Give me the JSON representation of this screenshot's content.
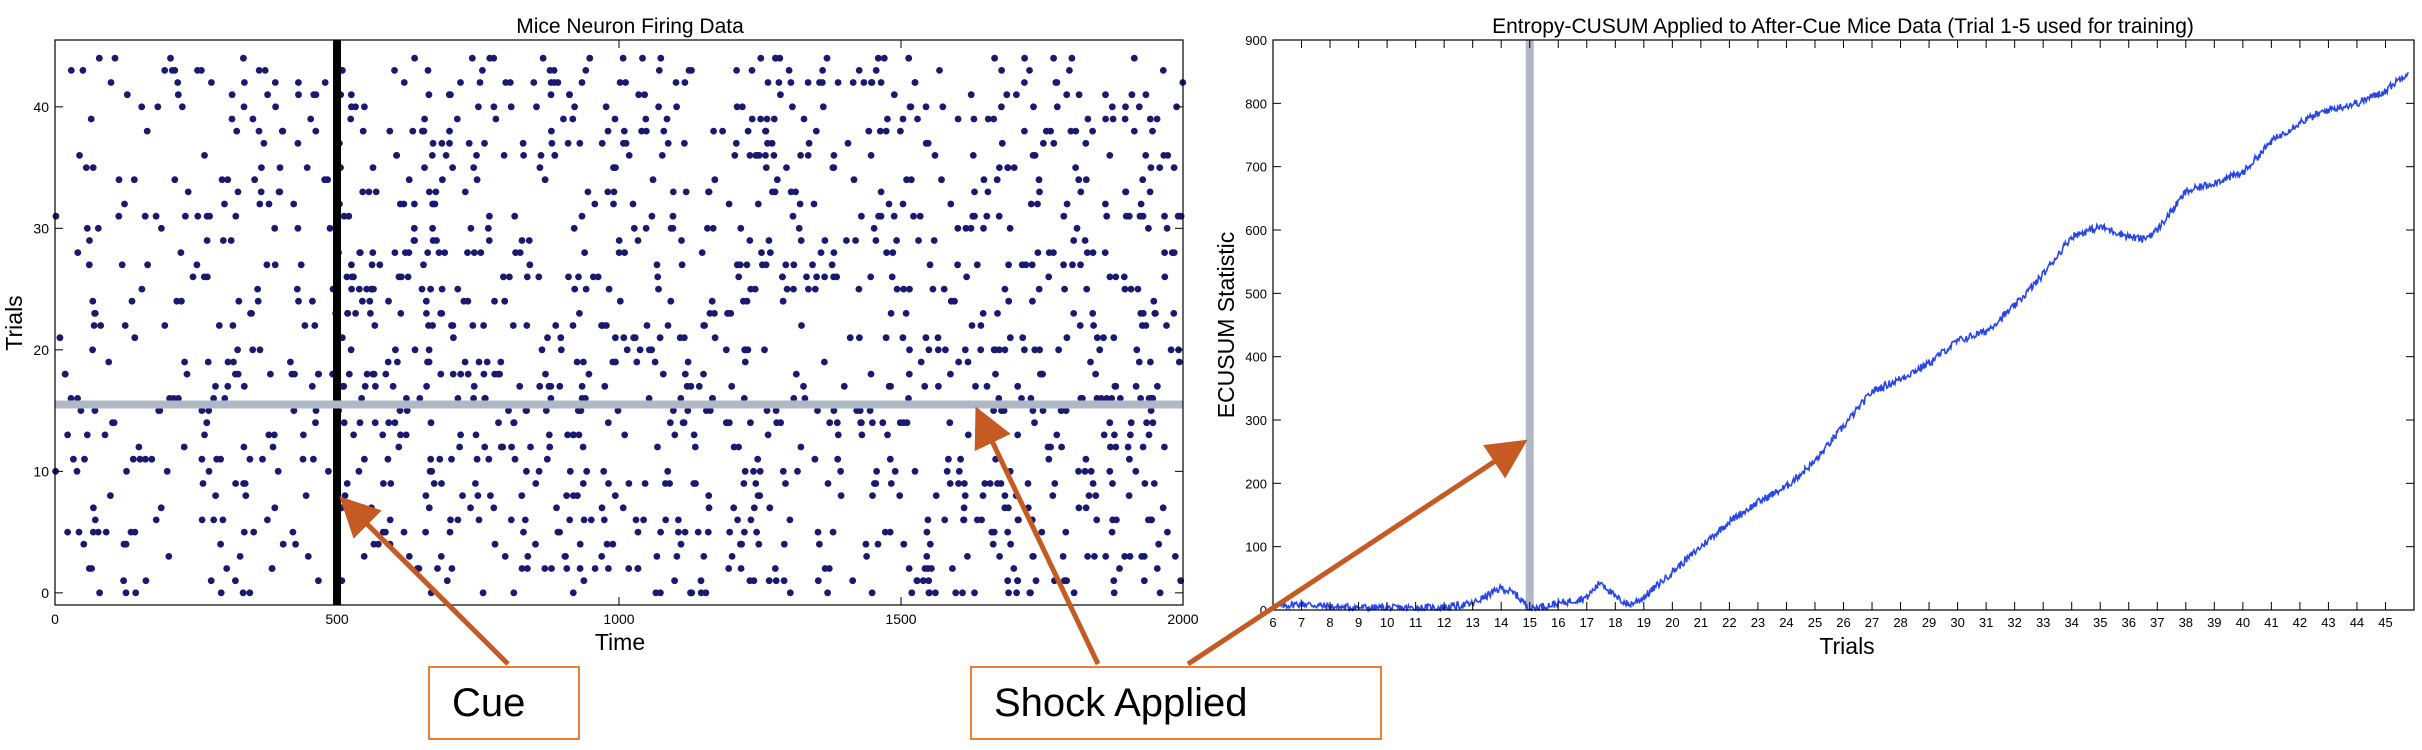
{
  "chart_data": [
    {
      "type": "scatter",
      "title": "Mice Neuron Firing Data",
      "xlabel": "Time",
      "ylabel": "Trials",
      "xlim": [
        0,
        2000
      ],
      "ylim": [
        -1,
        45.5
      ],
      "x_ticks": [
        "0",
        "500",
        "1000",
        "1500",
        "2000"
      ],
      "y_ticks": [
        "0",
        "10",
        "20",
        "30",
        "40"
      ],
      "grid": false,
      "marker_color": "#191970",
      "vline": {
        "x": 500,
        "color": "#000000"
      },
      "hline": {
        "y": 15.5,
        "color": "#B0B8C6"
      },
      "point_count_approx": 1500,
      "note_series": "spike raster: one dot per spike, trials 0-44 on y, time 0-2000 on x"
    },
    {
      "type": "line",
      "title": "Entropy-CUSUM Applied to After-Cue Mice Data (Trial 1-5 used for training)",
      "xlabel": "Trials",
      "ylabel": "ECUSUM Statistic",
      "xlim": [
        6,
        46
      ],
      "ylim": [
        0,
        900
      ],
      "x_ticks": [
        "6",
        "7",
        "8",
        "9",
        "10",
        "11",
        "12",
        "13",
        "14",
        "15",
        "16",
        "17",
        "18",
        "19",
        "20",
        "21",
        "22",
        "23",
        "24",
        "25",
        "26",
        "27",
        "28",
        "29",
        "30",
        "31",
        "32",
        "33",
        "34",
        "35",
        "36",
        "37",
        "38",
        "39",
        "40",
        "41",
        "42",
        "43",
        "44",
        "45"
      ],
      "y_ticks": [
        "0",
        "100",
        "200",
        "300",
        "400",
        "500",
        "600",
        "700",
        "800",
        "900"
      ],
      "grid": false,
      "line_color": "#2846E8",
      "vline": {
        "x": 15,
        "color": "#B0B8C6"
      },
      "x": [
        6,
        7,
        8,
        9,
        10,
        11,
        12,
        13,
        14,
        14.5,
        15,
        16,
        17,
        17.5,
        18,
        18.5,
        19,
        20,
        21,
        22,
        23,
        24,
        25,
        26,
        27,
        28,
        29,
        30,
        31,
        32,
        33,
        34,
        35,
        36,
        36.5,
        37,
        38,
        39,
        40,
        41,
        42,
        43,
        44,
        45,
        45.8
      ],
      "y": [
        5,
        10,
        5,
        4,
        3,
        3,
        4,
        10,
        35,
        25,
        2,
        10,
        20,
        45,
        20,
        8,
        20,
        60,
        100,
        140,
        170,
        195,
        235,
        290,
        345,
        365,
        390,
        425,
        440,
        480,
        530,
        590,
        605,
        590,
        585,
        600,
        660,
        675,
        690,
        740,
        770,
        790,
        800,
        820,
        850
      ]
    }
  ],
  "callouts": [
    {
      "label": "Cue"
    },
    {
      "label": "Shock Applied"
    }
  ],
  "colors": {
    "callout_border": "#ED7D31",
    "arrow": "#C55A22"
  }
}
